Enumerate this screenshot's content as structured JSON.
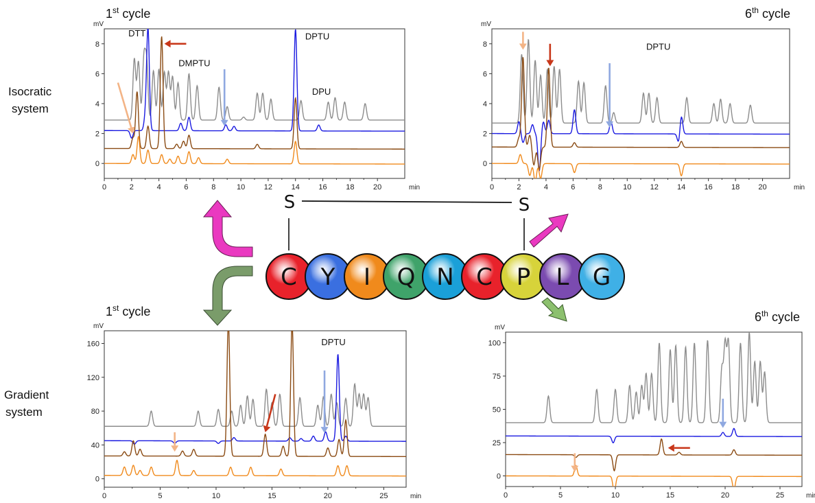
{
  "labels": {
    "isocratic_line1": "Isocratic",
    "isocratic_line2": "system",
    "gradient_line1": "Gradient",
    "gradient_line2": "system"
  },
  "peptide": {
    "residues": [
      "C",
      "Y",
      "I",
      "Q",
      "N",
      "C",
      "P",
      "L",
      "G"
    ],
    "colors": [
      "#e8222b",
      "#3a6fe0",
      "#f08a1c",
      "#3fa36a",
      "#1aa0d8",
      "#e8222b",
      "#d7d33a",
      "#7b4bb0",
      "#3fb0e6"
    ],
    "disulfide": [
      "S",
      "S"
    ]
  },
  "series_colors": {
    "grey": "#8c8c8c",
    "blue": "#1a1ae0",
    "brown": "#8a4a12",
    "orange": "#f08a1c",
    "arrow_light_orange": "#f3b486",
    "arrow_red": "#c8371a",
    "arrow_blue": "#8fa8e0",
    "arrow_pink": "#ea39c0",
    "arrow_olive": "#7a9c6a"
  },
  "chart_data": [
    {
      "id": "iso1",
      "type": "line",
      "cycle_text": "1",
      "cycle_sup": "st",
      "cycle_word": " cycle",
      "unit_y": "mV",
      "unit_x": "min",
      "xlim": [
        0,
        22
      ],
      "ylim": [
        -1,
        9
      ],
      "xticks": [
        0,
        2,
        4,
        6,
        8,
        10,
        12,
        14,
        16,
        18,
        20
      ],
      "yticks": [
        0,
        2,
        4,
        6,
        8
      ],
      "annotations": [
        {
          "text": "DTT",
          "x": 2.4,
          "y": 8.5
        },
        {
          "text": "DMPTU",
          "x": 6.6,
          "y": 6.5
        },
        {
          "text": "DPTU",
          "x": 15.6,
          "y": 8.3
        },
        {
          "text": "DPU",
          "x": 15.9,
          "y": 4.6
        }
      ],
      "series": [
        {
          "color": "grey",
          "baseline": 2.9,
          "peaks": [
            [
              2.2,
              4.1
            ],
            [
              2.5,
              3.9
            ],
            [
              2.9,
              4.0
            ],
            [
              3.1,
              3.8
            ],
            [
              3.6,
              3.3
            ],
            [
              4.0,
              3.4
            ],
            [
              4.4,
              3.2
            ],
            [
              4.7,
              3.2
            ],
            [
              5.0,
              2.9
            ],
            [
              5.4,
              2.5
            ],
            [
              6.2,
              3.1
            ],
            [
              6.8,
              2.3
            ],
            [
              8.4,
              2.2
            ],
            [
              9.0,
              0.9
            ],
            [
              10.2,
              0.2
            ],
            [
              11.2,
              1.8
            ],
            [
              11.6,
              1.8
            ],
            [
              12.2,
              1.4
            ],
            [
              14.4,
              1.3
            ],
            [
              16.4,
              1.2
            ],
            [
              16.9,
              1.5
            ],
            [
              17.6,
              1.2
            ],
            [
              19.1,
              1.1
            ]
          ]
        },
        {
          "color": "blue",
          "baseline": 2.2,
          "peaks": [
            [
              2.0,
              -0.5
            ],
            [
              3.2,
              6.8
            ],
            [
              3.0,
              0.8
            ],
            [
              5.6,
              0.5
            ],
            [
              6.2,
              0.9
            ],
            [
              8.9,
              0.4
            ],
            [
              9.5,
              0.3
            ],
            [
              14.0,
              6.8
            ],
            [
              15.7,
              0.4
            ]
          ]
        },
        {
          "color": "brown",
          "baseline": 1.0,
          "peaks": [
            [
              2.1,
              0.7
            ],
            [
              2.4,
              3.8
            ],
            [
              3.2,
              1.5
            ],
            [
              4.2,
              7.5
            ],
            [
              5.3,
              0.3
            ],
            [
              5.8,
              0.5
            ],
            [
              6.2,
              0.9
            ],
            [
              11.2,
              0.3
            ],
            [
              14.0,
              3.4
            ]
          ]
        },
        {
          "color": "orange",
          "baseline": 0.0,
          "peaks": [
            [
              2.1,
              0.6
            ],
            [
              2.5,
              1.8
            ],
            [
              3.2,
              0.9
            ],
            [
              4.2,
              0.6
            ],
            [
              4.8,
              0.3
            ],
            [
              5.4,
              0.5
            ],
            [
              6.2,
              0.8
            ],
            [
              6.9,
              0.4
            ],
            [
              9.0,
              0.3
            ],
            [
              14.0,
              1.5
            ]
          ]
        }
      ],
      "arrows": [
        {
          "color": "arrow_light_orange",
          "from": [
            1.0,
            5.4
          ],
          "to": [
            2.1,
            2.0
          ],
          "label": ""
        },
        {
          "color": "arrow_red",
          "from": [
            6.0,
            8.0
          ],
          "to": [
            4.4,
            8.0
          ],
          "label": ""
        },
        {
          "color": "arrow_blue",
          "from": [
            8.8,
            6.3
          ],
          "to": [
            8.8,
            2.5
          ],
          "label": ""
        }
      ]
    },
    {
      "id": "iso6",
      "type": "line",
      "cycle_text": "6",
      "cycle_sup": "th",
      "cycle_word": " cycle",
      "unit_y": "mV",
      "unit_x": "min",
      "xlim": [
        0,
        22
      ],
      "ylim": [
        -1,
        9
      ],
      "xticks": [
        0,
        2,
        4,
        6,
        8,
        10,
        12,
        14,
        16,
        18,
        20
      ],
      "yticks": [
        0,
        2,
        4,
        6,
        8
      ],
      "annotations": [
        {
          "text": "DPTU",
          "x": 12.3,
          "y": 7.6
        }
      ],
      "series": [
        {
          "color": "grey",
          "baseline": 2.7,
          "peaks": [
            [
              2.2,
              4.6
            ],
            [
              2.7,
              5.6
            ],
            [
              3.2,
              4.2
            ],
            [
              3.6,
              3.2
            ],
            [
              4.1,
              3.6
            ],
            [
              4.6,
              3.8
            ],
            [
              5.0,
              3.6
            ],
            [
              6.4,
              2.8
            ],
            [
              6.8,
              2.7
            ],
            [
              8.4,
              2.5
            ],
            [
              9.0,
              0.7
            ],
            [
              11.2,
              2.0
            ],
            [
              11.6,
              2.0
            ],
            [
              12.2,
              1.7
            ],
            [
              14.4,
              1.7
            ],
            [
              16.4,
              1.3
            ],
            [
              16.9,
              1.6
            ],
            [
              17.6,
              1.3
            ],
            [
              19.1,
              1.2
            ]
          ]
        },
        {
          "color": "blue",
          "baseline": 2.0,
          "peaks": [
            [
              2.0,
              0.8
            ],
            [
              2.3,
              -0.6
            ],
            [
              3.0,
              0.6
            ],
            [
              3.5,
              -2.5
            ],
            [
              3.8,
              0.8
            ],
            [
              4.2,
              0.9
            ],
            [
              6.1,
              1.6
            ],
            [
              8.8,
              0.8
            ],
            [
              13.8,
              -0.6
            ],
            [
              14.0,
              1.2
            ]
          ]
        },
        {
          "color": "brown",
          "baseline": 1.1,
          "peaks": [
            [
              2.0,
              0.6
            ],
            [
              2.3,
              6.0
            ],
            [
              2.8,
              0.8
            ],
            [
              3.1,
              -1.2
            ],
            [
              3.5,
              -1.5
            ],
            [
              4.2,
              5.3
            ],
            [
              6.1,
              0.3
            ],
            [
              14.0,
              0.4
            ]
          ]
        },
        {
          "color": "orange",
          "baseline": 0.0,
          "peaks": [
            [
              2.1,
              0.6
            ],
            [
              2.8,
              -0.8
            ],
            [
              3.2,
              -1.2
            ],
            [
              3.6,
              -1.0
            ],
            [
              6.1,
              -0.6
            ],
            [
              14.0,
              -0.8
            ]
          ]
        }
      ],
      "arrows": [
        {
          "color": "arrow_light_orange",
          "from": [
            2.3,
            8.8
          ],
          "to": [
            2.3,
            7.6
          ],
          "label": ""
        },
        {
          "color": "arrow_red",
          "from": [
            4.3,
            8.0
          ],
          "to": [
            4.3,
            6.5
          ],
          "label": ""
        },
        {
          "color": "arrow_blue",
          "from": [
            8.7,
            6.7
          ],
          "to": [
            8.7,
            2.4
          ],
          "label": ""
        }
      ]
    },
    {
      "id": "grad1",
      "type": "line",
      "cycle_text": "1",
      "cycle_sup": "st",
      "cycle_word": " cycle",
      "unit_y": "mV",
      "unit_x": "min",
      "xlim": [
        0,
        27
      ],
      "ylim": [
        -10,
        175
      ],
      "xticks": [
        0,
        5,
        10,
        15,
        20,
        25
      ],
      "yticks": [
        0,
        40,
        80,
        120,
        160
      ],
      "annotations": [
        {
          "text": "DPTU",
          "x": 20.5,
          "y": 158
        }
      ],
      "series": [
        {
          "color": "grey",
          "baseline": 62,
          "peaks": [
            [
              4.2,
              18
            ],
            [
              8.4,
              18
            ],
            [
              10.2,
              20
            ],
            [
              11.4,
              18
            ],
            [
              12.2,
              25
            ],
            [
              12.8,
              36
            ],
            [
              13.3,
              32
            ],
            [
              14.5,
              44
            ],
            [
              15.0,
              28
            ],
            [
              15.7,
              38
            ],
            [
              17.5,
              34
            ],
            [
              19.1,
              25
            ],
            [
              19.6,
              35
            ],
            [
              20.3,
              38
            ],
            [
              20.8,
              28
            ],
            [
              21.6,
              33
            ],
            [
              22.4,
              50
            ],
            [
              22.8,
              38
            ],
            [
              23.2,
              38
            ],
            [
              23.6,
              34
            ]
          ]
        },
        {
          "color": "blue",
          "baseline": 45,
          "peaks": [
            [
              2.7,
              -4
            ],
            [
              6.3,
              -3
            ],
            [
              10.2,
              -3
            ],
            [
              11.6,
              4
            ],
            [
              16.6,
              4
            ],
            [
              17.6,
              3
            ],
            [
              18.7,
              6
            ],
            [
              19.8,
              11
            ],
            [
              20.9,
              103
            ],
            [
              21.6,
              6
            ]
          ]
        },
        {
          "color": "brown",
          "baseline": 27,
          "peaks": [
            [
              1.8,
              5
            ],
            [
              2.6,
              18
            ],
            [
              3.2,
              8
            ],
            [
              7.0,
              6
            ],
            [
              8.0,
              8
            ],
            [
              11.1,
              160
            ],
            [
              14.4,
              26
            ],
            [
              16.0,
              12
            ],
            [
              16.8,
              158
            ],
            [
              20.0,
              10
            ],
            [
              21.0,
              20
            ],
            [
              21.6,
              43
            ]
          ]
        },
        {
          "color": "orange",
          "baseline": 4,
          "peaks": [
            [
              1.8,
              10
            ],
            [
              2.6,
              12
            ],
            [
              3.2,
              6
            ],
            [
              4.2,
              10
            ],
            [
              6.5,
              18
            ],
            [
              8.0,
              6
            ],
            [
              11.3,
              10
            ],
            [
              13.1,
              10
            ],
            [
              15.8,
              8
            ],
            [
              20.9,
              12
            ],
            [
              21.7,
              12
            ]
          ]
        }
      ],
      "arrows": [
        {
          "color": "arrow_light_orange",
          "from": [
            6.3,
            55
          ],
          "to": [
            6.3,
            32
          ],
          "label": ""
        },
        {
          "color": "arrow_red",
          "from": [
            15.3,
            100
          ],
          "to": [
            14.4,
            55
          ],
          "label": ""
        },
        {
          "color": "arrow_blue",
          "from": [
            19.7,
            128
          ],
          "to": [
            19.7,
            54
          ],
          "label": ""
        }
      ]
    },
    {
      "id": "grad6",
      "type": "line",
      "cycle_text": "6",
      "cycle_sup": "th",
      "cycle_word": " cycle",
      "unit_y": "mV",
      "unit_x": "min",
      "xlim": [
        0,
        27
      ],
      "ylim": [
        -8,
        108
      ],
      "xticks": [
        0,
        5,
        10,
        15,
        20,
        25
      ],
      "yticks": [
        0,
        25,
        50,
        75,
        100
      ],
      "annotations": [],
      "series": [
        {
          "color": "grey",
          "baseline": 40,
          "peaks": [
            [
              3.9,
              20
            ],
            [
              8.3,
              25
            ],
            [
              10.0,
              25
            ],
            [
              11.3,
              28
            ],
            [
              11.9,
              23
            ],
            [
              12.4,
              28
            ],
            [
              12.8,
              37
            ],
            [
              13.3,
              37
            ],
            [
              14.0,
              60
            ],
            [
              15.0,
              55
            ],
            [
              15.5,
              58
            ],
            [
              16.4,
              57
            ],
            [
              17.2,
              60
            ],
            [
              18.4,
              62
            ],
            [
              19.7,
              40
            ],
            [
              20.0,
              58
            ],
            [
              20.3,
              60
            ],
            [
              21.4,
              60
            ],
            [
              22.2,
              68
            ],
            [
              22.7,
              46
            ],
            [
              23.2,
              46
            ],
            [
              23.6,
              38
            ]
          ]
        },
        {
          "color": "blue",
          "baseline": 30,
          "peaks": [
            [
              9.8,
              -5
            ],
            [
              19.8,
              3
            ],
            [
              20.8,
              6
            ]
          ]
        },
        {
          "color": "brown",
          "baseline": 16,
          "peaks": [
            [
              6.4,
              -2
            ],
            [
              9.9,
              -12
            ],
            [
              14.2,
              12
            ],
            [
              15.8,
              2
            ],
            [
              20.8,
              4
            ]
          ]
        },
        {
          "color": "orange",
          "baseline": 0,
          "peaks": [
            [
              6.4,
              8
            ],
            [
              9.9,
              -12
            ],
            [
              20.8,
              -10
            ]
          ]
        }
      ],
      "arrows": [
        {
          "color": "arrow_light_orange",
          "from": [
            6.3,
            17
          ],
          "to": [
            6.3,
            3
          ],
          "label": ""
        },
        {
          "color": "arrow_red",
          "from": [
            16.8,
            21
          ],
          "to": [
            14.8,
            21
          ],
          "label": ""
        },
        {
          "color": "arrow_blue",
          "from": [
            19.8,
            58
          ],
          "to": [
            19.8,
            36
          ],
          "label": ""
        }
      ]
    }
  ]
}
